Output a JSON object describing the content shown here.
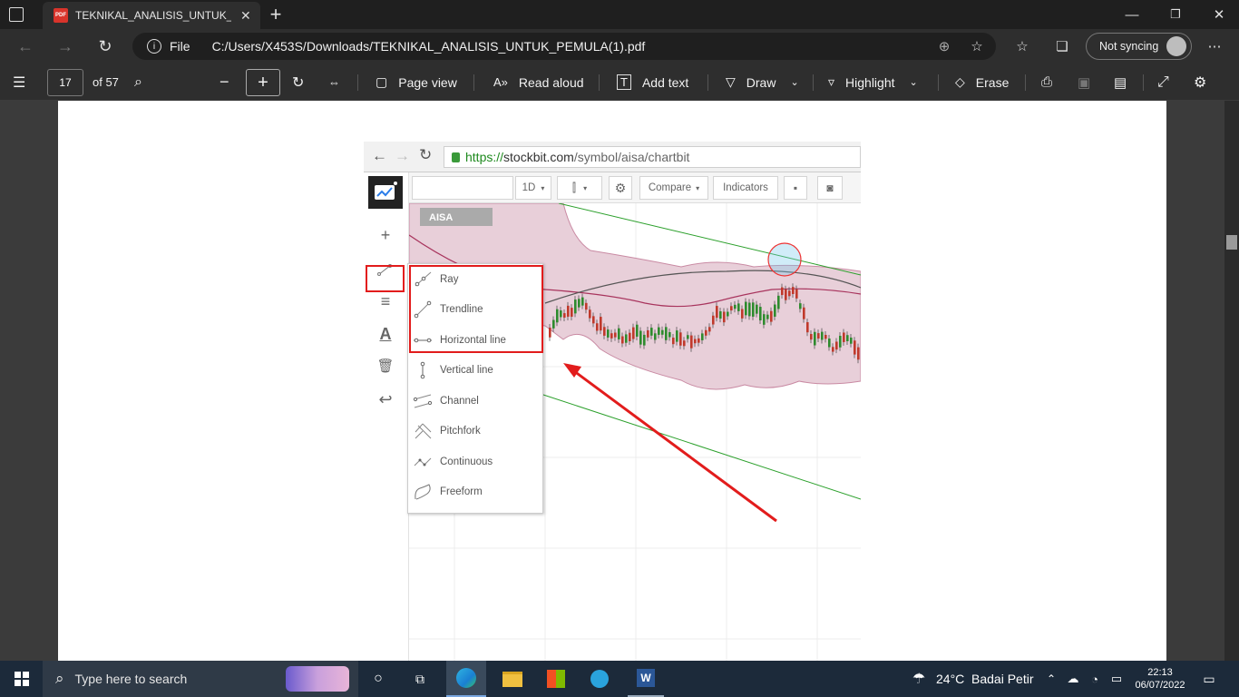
{
  "browser": {
    "tab_title": "TEKNIKAL_ANALISIS_UNTUK_PEMULA(1).pdf",
    "tab_icon_text": "PDF",
    "new_tab": "+",
    "address_label": "File",
    "address": "C:/Users/X453S/Downloads/TEKNIKAL_ANALISIS_UNTUK_PEMULA(1).pdf",
    "sync_label": "Not syncing"
  },
  "pdf_toolbar": {
    "page_number": "17",
    "page_total": "of 57",
    "page_view": "Page view",
    "read_aloud": "Read aloud",
    "add_text": "Add text",
    "draw": "Draw",
    "highlight": "Highlight",
    "erase": "Erase"
  },
  "document": {
    "embedded_url_prefix": "https://",
    "embedded_url_host": "stockbit.com",
    "embedded_url_path": "/symbol/aisa/chartbit",
    "interval": "1D",
    "compare": "Compare",
    "indicators": "Indicators",
    "symbol": "AISA",
    "draw_menu": [
      "Ray",
      "Trendline",
      "Horizontal line",
      "Vertical line",
      "Channel",
      "Pitchfork",
      "Continuous",
      "Freeform"
    ]
  },
  "taskbar": {
    "search_placeholder": "Type here to search",
    "weather_temp": "24°C",
    "weather_desc": "Badai Petir",
    "time": "22:13",
    "date": "06/07/2022"
  },
  "colors": {
    "highlight_red": "#e21c1c",
    "trendline_green": "#2ca02c",
    "band_fill": "#e8cfd9",
    "bull_candle": "#2e8b2e",
    "bear_candle": "#c0392b"
  }
}
